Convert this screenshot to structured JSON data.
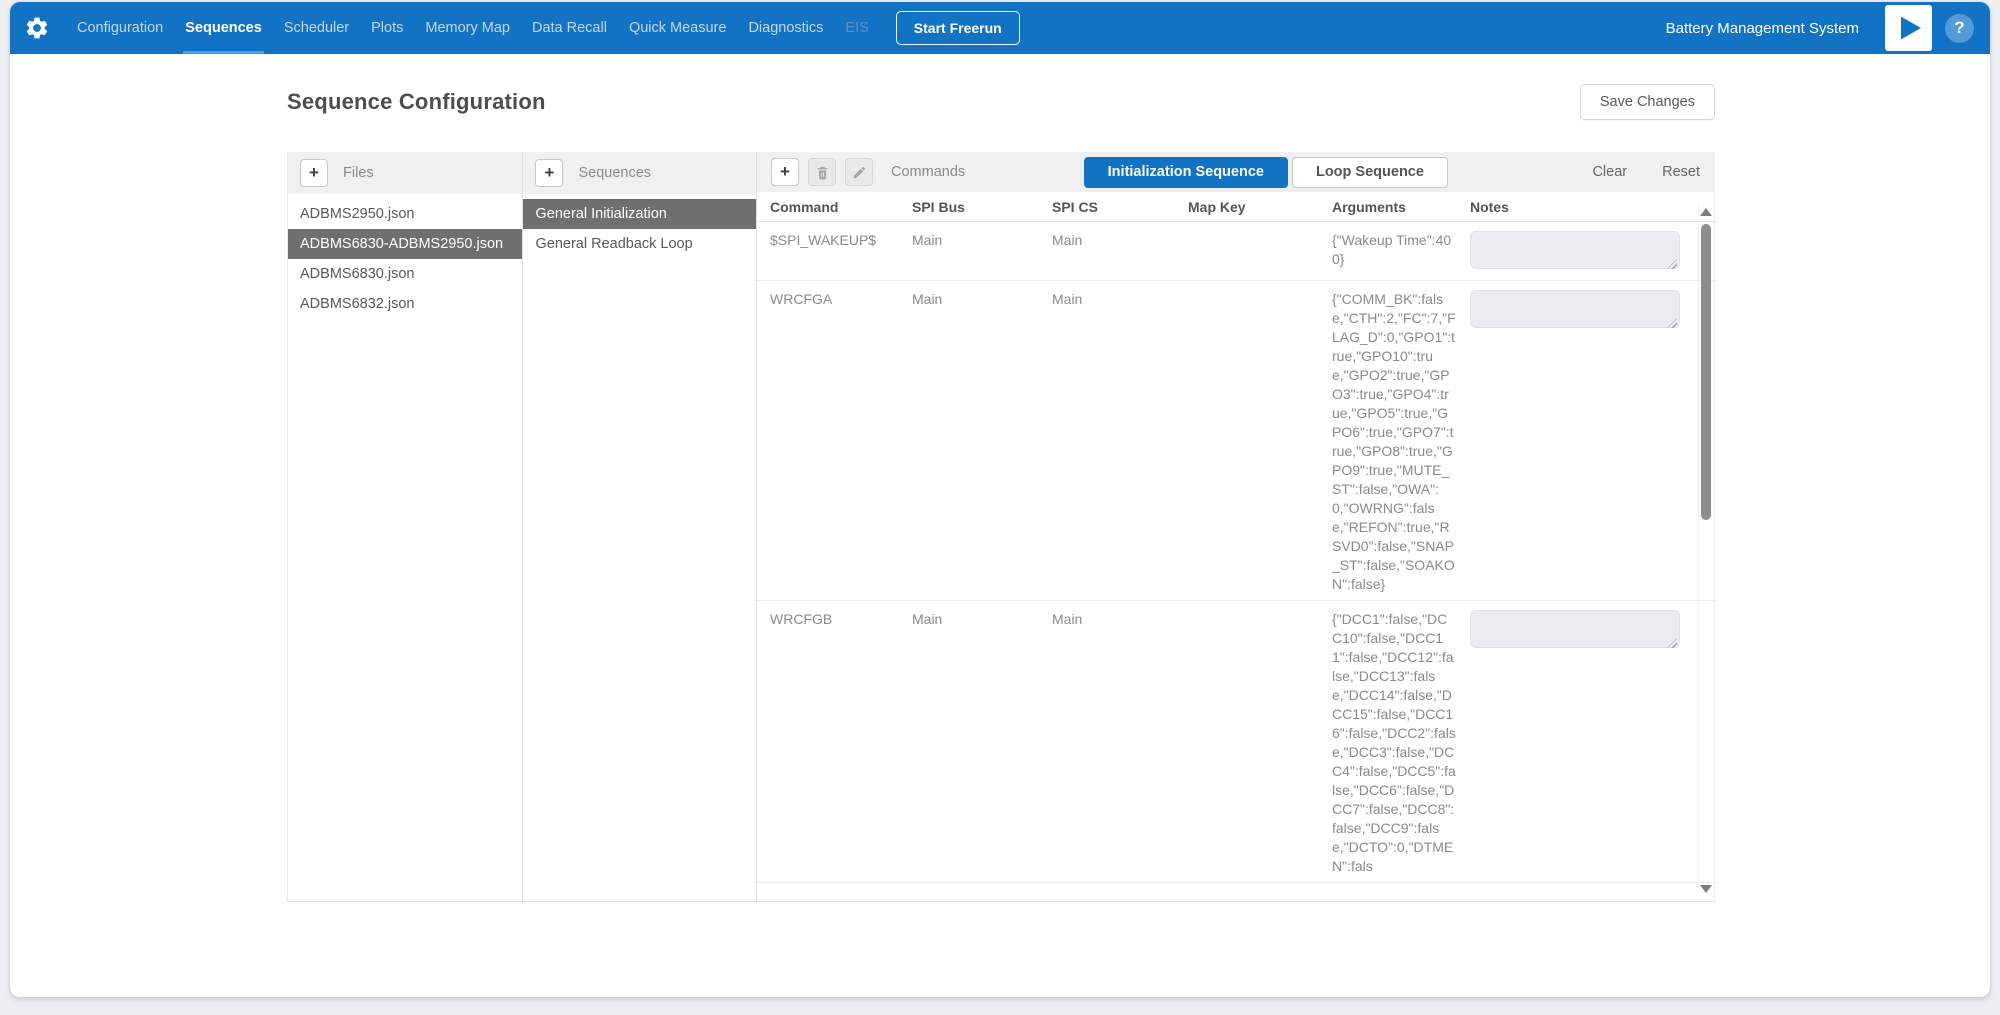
{
  "colors": {
    "navbar": "#1273c4",
    "accent": "#1273c4",
    "nav_underline": "#4e9fdd",
    "selected_item_bg": "#6f6f6f",
    "panel_header_bg": "#f0f0f0",
    "notes_field_bg": "#e9edf2"
  },
  "icons": {
    "gear": "gear-icon",
    "plus": "+",
    "trash": "trash-icon",
    "pencil": "pencil-icon",
    "play": "play-icon",
    "help": "?"
  },
  "app": {
    "brand": "Battery Management System",
    "start_freerun_label": "Start Freerun",
    "nav": [
      {
        "label": "Configuration",
        "state": "normal"
      },
      {
        "label": "Sequences",
        "state": "active"
      },
      {
        "label": "Scheduler",
        "state": "normal"
      },
      {
        "label": "Plots",
        "state": "normal"
      },
      {
        "label": "Memory Map",
        "state": "normal"
      },
      {
        "label": "Data Recall",
        "state": "normal"
      },
      {
        "label": "Quick Measure",
        "state": "normal"
      },
      {
        "label": "Diagnostics",
        "state": "normal"
      },
      {
        "label": "EIS",
        "state": "disabled"
      }
    ]
  },
  "page": {
    "title": "Sequence Configuration",
    "save_button_label": "Save Changes"
  },
  "files_panel": {
    "header": "Files",
    "items": [
      {
        "name": "ADBMS2950.json",
        "selected": false
      },
      {
        "name": "ADBMS6830-ADBMS2950.json",
        "selected": true
      },
      {
        "name": "ADBMS6830.json",
        "selected": false
      },
      {
        "name": "ADBMS6832.json",
        "selected": false
      }
    ]
  },
  "sequences_panel": {
    "header": "Sequences",
    "items": [
      {
        "name": "General Initialization",
        "selected": true
      },
      {
        "name": "General Readback Loop",
        "selected": false
      }
    ]
  },
  "commands_panel": {
    "header": "Commands",
    "tabs": [
      {
        "label": "Initialization Sequence",
        "active": true
      },
      {
        "label": "Loop Sequence",
        "active": false
      }
    ],
    "clear_label": "Clear",
    "reset_label": "Reset",
    "columns": [
      "Command",
      "SPI Bus",
      "SPI CS",
      "Map Key",
      "Arguments",
      "Notes"
    ],
    "rows": [
      {
        "command": "$SPI_WAKEUP$",
        "spi_bus": "Main",
        "spi_cs": "Main",
        "map_key": "",
        "arguments": "{\"Wakeup Time\":400}",
        "notes": ""
      },
      {
        "command": "WRCFGA",
        "spi_bus": "Main",
        "spi_cs": "Main",
        "map_key": "",
        "arguments": "{\"COMM_BK\":false,\"CTH\":2,\"FC\":7,\"FLAG_D\":0,\"GPO1\":true,\"GPO10\":true,\"GPO2\":true,\"GPO3\":true,\"GPO4\":true,\"GPO5\":true,\"GPO6\":true,\"GPO7\":true,\"GPO8\":true,\"GPO9\":true,\"MUTE_ST\":false,\"OWA\":0,\"OWRNG\":false,\"REFON\":true,\"RSVD0\":false,\"SNAP_ST\":false,\"SOAKON\":false}",
        "notes": ""
      },
      {
        "command": "WRCFGB",
        "spi_bus": "Main",
        "spi_cs": "Main",
        "map_key": "",
        "arguments": "{\"DCC1\":false,\"DCC10\":false,\"DCC11\":false,\"DCC12\":false,\"DCC13\":false,\"DCC14\":false,\"DCC15\":false,\"DCC16\":false,\"DCC2\":false,\"DCC3\":false,\"DCC4\":false,\"DCC5\":false,\"DCC6\":false,\"DCC7\":false,\"DCC8\":false,\"DCC9\":false,\"DCTO\":0,\"DTMEN\":fals",
        "notes": ""
      }
    ]
  }
}
